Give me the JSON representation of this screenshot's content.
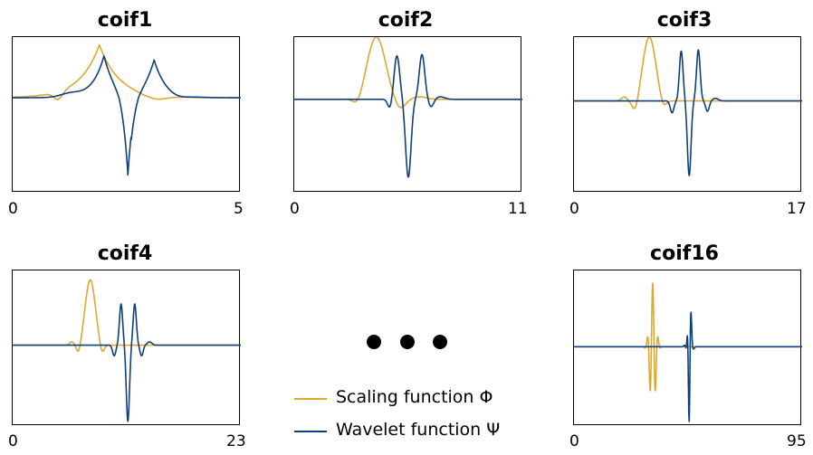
{
  "legend": {
    "scaling_label": "Scaling function Φ",
    "wavelet_label": "Wavelet function Ψ",
    "scaling_color": "#e0a72f",
    "wavelet_color": "#103f7e"
  },
  "chart_data": [
    {
      "type": "line",
      "title": "coif1",
      "xlim": [
        0,
        5
      ],
      "xticks": [
        "0",
        "5"
      ],
      "series": [
        {
          "role": "scaling",
          "color": "#e0a72f"
        },
        {
          "role": "wavelet",
          "color": "#103f7e"
        }
      ],
      "grid": false
    },
    {
      "type": "line",
      "title": "coif2",
      "xlim": [
        0,
        11
      ],
      "xticks": [
        "0",
        "11"
      ],
      "series": [
        {
          "role": "scaling",
          "color": "#e0a72f"
        },
        {
          "role": "wavelet",
          "color": "#103f7e"
        }
      ],
      "grid": false
    },
    {
      "type": "line",
      "title": "coif3",
      "xlim": [
        0,
        17
      ],
      "xticks": [
        "0",
        "17"
      ],
      "series": [
        {
          "role": "scaling",
          "color": "#e0a72f"
        },
        {
          "role": "wavelet",
          "color": "#103f7e"
        }
      ],
      "grid": false
    },
    {
      "type": "line",
      "title": "coif4",
      "xlim": [
        0,
        23
      ],
      "xticks": [
        "0",
        "23"
      ],
      "series": [
        {
          "role": "scaling",
          "color": "#e0a72f"
        },
        {
          "role": "wavelet",
          "color": "#103f7e"
        }
      ],
      "grid": false
    },
    {
      "type": "line",
      "title": "coif16",
      "xlim": [
        0,
        95
      ],
      "xticks": [
        "0",
        "95"
      ],
      "series": [
        {
          "role": "scaling",
          "color": "#e0a72f"
        },
        {
          "role": "wavelet",
          "color": "#103f7e"
        }
      ],
      "grid": false
    }
  ]
}
